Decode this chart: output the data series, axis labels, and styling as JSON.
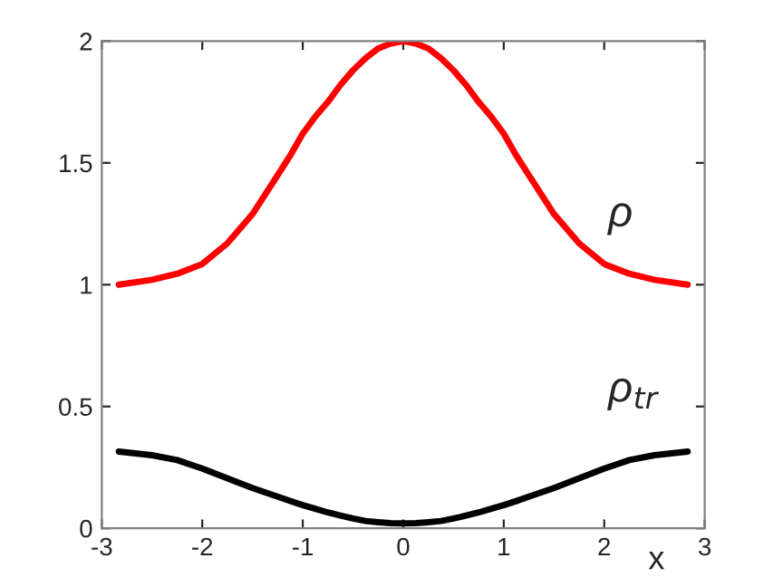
{
  "chart_data": {
    "type": "line",
    "xlabel": "x",
    "x": [
      -2.83,
      -2.5,
      -2.25,
      -2,
      -1.75,
      -1.5,
      -1.25,
      -1.125,
      -1,
      -0.875,
      -0.75,
      -0.625,
      -0.5,
      -0.375,
      -0.25,
      -0.125,
      0,
      0.125,
      0.25,
      0.375,
      0.5,
      0.625,
      0.75,
      0.875,
      1,
      1.125,
      1.25,
      1.5,
      1.75,
      2,
      2.25,
      2.5,
      2.83
    ],
    "series": [
      {
        "color": "#ff0000",
        "values": [
          1.0,
          1.02,
          1.045,
          1.085,
          1.17,
          1.29,
          1.45,
          1.53,
          1.62,
          1.69,
          1.75,
          1.82,
          1.88,
          1.93,
          1.97,
          1.99,
          2.0,
          1.99,
          1.97,
          1.93,
          1.88,
          1.82,
          1.75,
          1.69,
          1.62,
          1.53,
          1.45,
          1.29,
          1.17,
          1.085,
          1.045,
          1.02,
          1.0
        ]
      },
      {
        "color": "#000000",
        "values": [
          0.315,
          0.3,
          0.28,
          0.245,
          0.205,
          0.165,
          0.13,
          0.112,
          0.095,
          0.08,
          0.065,
          0.052,
          0.04,
          0.03,
          0.025,
          0.021,
          0.02,
          0.021,
          0.025,
          0.03,
          0.04,
          0.052,
          0.065,
          0.08,
          0.095,
          0.112,
          0.13,
          0.165,
          0.205,
          0.245,
          0.28,
          0.3,
          0.315
        ]
      }
    ],
    "annotations": [
      "ρ",
      "ρ$_{tr}$"
    ],
    "xlim": [
      -3,
      3
    ],
    "ylim": [
      0,
      2
    ],
    "xticks": [
      -3,
      -2,
      -1,
      0,
      1,
      2,
      3
    ],
    "yticks": [
      0,
      0.5,
      1,
      1.5,
      2
    ],
    "grid": false,
    "legend": false
  }
}
